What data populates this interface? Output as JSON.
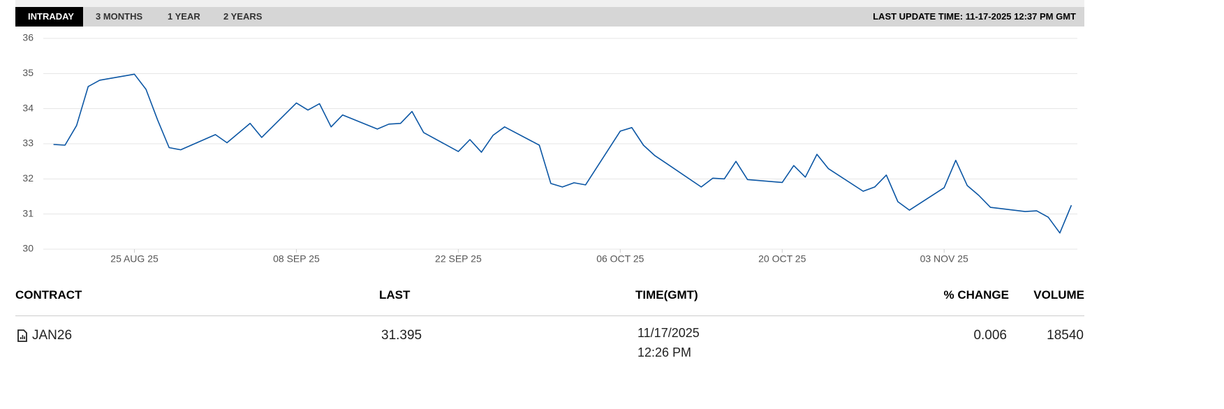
{
  "tabs": [
    "INTRADAY",
    "3 MONTHS",
    "1 YEAR",
    "2 YEARS"
  ],
  "last_update": "LAST UPDATE TIME: 11-17-2025 12:37 PM GMT",
  "chart_data": {
    "type": "line",
    "x": [
      "2025-08-18",
      "2025-08-19",
      "2025-08-20",
      "2025-08-21",
      "2025-08-22",
      "2025-08-25",
      "2025-08-26",
      "2025-08-27",
      "2025-08-28",
      "2025-08-29",
      "2025-09-01",
      "2025-09-02",
      "2025-09-04",
      "2025-09-05",
      "2025-09-08",
      "2025-09-09",
      "2025-09-10",
      "2025-09-11",
      "2025-09-12",
      "2025-09-15",
      "2025-09-16",
      "2025-09-17",
      "2025-09-18",
      "2025-09-19",
      "2025-09-22",
      "2025-09-23",
      "2025-09-24",
      "2025-09-25",
      "2025-09-26",
      "2025-09-29",
      "2025-09-30",
      "2025-10-01",
      "2025-10-02",
      "2025-10-03",
      "2025-10-06",
      "2025-10-07",
      "2025-10-08",
      "2025-10-09",
      "2025-10-10",
      "2025-10-13",
      "2025-10-14",
      "2025-10-15",
      "2025-10-16",
      "2025-10-17",
      "2025-10-20",
      "2025-10-21",
      "2025-10-22",
      "2025-10-23",
      "2025-10-24",
      "2025-10-27",
      "2025-10-28",
      "2025-10-29",
      "2025-10-30",
      "2025-10-31",
      "2025-11-03",
      "2025-11-04",
      "2025-11-05",
      "2025-11-06",
      "2025-11-07",
      "2025-11-10",
      "2025-11-11",
      "2025-11-12",
      "2025-11-13",
      "2025-11-14"
    ],
    "series": [
      {
        "color": "#0b56a4",
        "values": [
          32.98,
          32.96,
          33.52,
          34.63,
          34.81,
          34.98,
          34.55,
          33.68,
          32.89,
          32.83,
          33.26,
          33.03,
          33.58,
          33.18,
          34.16,
          33.96,
          34.14,
          33.48,
          33.82,
          33.42,
          33.56,
          33.58,
          33.92,
          33.32,
          32.78,
          33.12,
          32.76,
          33.24,
          33.48,
          32.96,
          31.87,
          31.77,
          31.89,
          31.83,
          33.36,
          33.46,
          32.96,
          32.66,
          32.44,
          31.77,
          32.02,
          32.0,
          32.5,
          31.98,
          31.9,
          32.38,
          32.05,
          32.7,
          32.29,
          31.65,
          31.77,
          32.11,
          31.35,
          31.11,
          31.75,
          32.53,
          31.81,
          31.53,
          31.19,
          31.07,
          31.09,
          30.91,
          30.46,
          31.25
        ]
      }
    ],
    "xlim": [
      "2025-08-17",
      "2025-11-15"
    ],
    "xticks": [
      {
        "value": "2025-08-25",
        "label": "25 AUG 25"
      },
      {
        "value": "2025-09-08",
        "label": "08 SEP 25"
      },
      {
        "value": "2025-09-22",
        "label": "22 SEP 25"
      },
      {
        "value": "2025-10-06",
        "label": "06 OCT 25"
      },
      {
        "value": "2025-10-20",
        "label": "20 OCT 25"
      },
      {
        "value": "2025-11-03",
        "label": "03 NOV 25"
      }
    ],
    "ylim": [
      30,
      36
    ],
    "yticks": [
      30,
      31,
      32,
      33,
      34,
      35,
      36
    ],
    "grid": true
  },
  "table": {
    "headers": [
      "CONTRACT",
      "LAST",
      "TIME(GMT)",
      "% CHANGE",
      "VOLUME"
    ],
    "rows": [
      [
        "JAN26",
        31.395,
        [
          "11/17/2025",
          "12:26 PM"
        ],
        0.006,
        18540
      ]
    ]
  }
}
